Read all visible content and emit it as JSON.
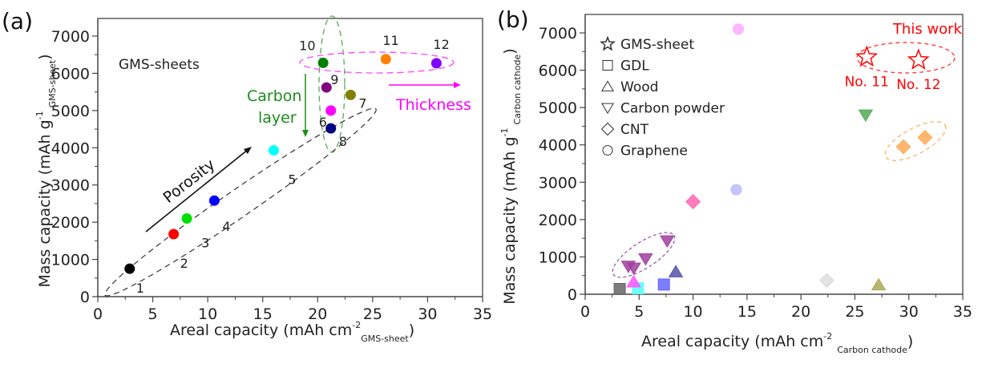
{
  "chart_data": [
    {
      "id": "a",
      "type": "scatter",
      "panel_label": "(a)",
      "title": "",
      "inset_title": "GMS-sheets",
      "xlabel": "Areal capacity (mAh cm",
      "xlabel_sup": "-2",
      "xlabel_sub": "GMS-sheet",
      "xlabel_close": ")",
      "ylabel": "Mass capacity (mAh g",
      "ylabel_sup": "-1",
      "ylabel_sub": "GMS-sheet",
      "ylabel_close": ")",
      "xlim": [
        0,
        35
      ],
      "ylim": [
        0,
        7000
      ],
      "xticks": [
        0,
        5,
        10,
        15,
        20,
        25,
        30,
        35
      ],
      "yticks": [
        0,
        1000,
        2000,
        3000,
        4000,
        5000,
        6000,
        7000
      ],
      "grid": false,
      "points": [
        {
          "label": "1",
          "x": 2.9,
          "y": 750,
          "color": "#000000"
        },
        {
          "label": "2",
          "x": 6.9,
          "y": 1680,
          "color": "#ff0000"
        },
        {
          "label": "3",
          "x": 8.1,
          "y": 2100,
          "color": "#00e000"
        },
        {
          "label": "4",
          "x": 10.6,
          "y": 2580,
          "color": "#0000ff"
        },
        {
          "label": "5",
          "x": 16.0,
          "y": 3930,
          "color": "#00ffff"
        },
        {
          "label": "6",
          "x": 21.2,
          "y": 5000,
          "color": "#ff00ff"
        },
        {
          "label": "7",
          "x": 23.0,
          "y": 5420,
          "color": "#808000"
        },
        {
          "label": "8",
          "x": 21.2,
          "y": 4520,
          "color": "#000080"
        },
        {
          "label": "9",
          "x": 20.8,
          "y": 5620,
          "color": "#800080"
        },
        {
          "label": "10",
          "x": 20.5,
          "y": 6280,
          "color": "#008000"
        },
        {
          "label": "11",
          "x": 26.2,
          "y": 6380,
          "color": "#ff8000"
        },
        {
          "label": "12",
          "x": 30.8,
          "y": 6270,
          "color": "#8000ff"
        }
      ],
      "annotations": {
        "porosity": {
          "text": "Porosity",
          "color": "#000000"
        },
        "carbon_layer": {
          "line1": "Carbon",
          "line2": "layer",
          "color": "#1a8c1a"
        },
        "thickness": {
          "text": "Thickness",
          "color": "#ff00ff"
        }
      }
    },
    {
      "id": "b",
      "type": "scatter",
      "panel_label": "(b)",
      "title": "",
      "xlabel": "Areal capacity (mAh cm",
      "xlabel_sup": "-2",
      "xlabel_sub": "Carbon cathode",
      "xlabel_close": ")",
      "ylabel": "Mass capacity (mAh g",
      "ylabel_sup": "-1",
      "ylabel_sub": "Carbon cathode",
      "ylabel_close": ")",
      "xlim": [
        0,
        35
      ],
      "ylim": [
        0,
        7000
      ],
      "xticks": [
        0,
        5,
        10,
        15,
        20,
        25,
        30,
        35
      ],
      "yticks": [
        0,
        1000,
        2000,
        3000,
        4000,
        5000,
        6000,
        7000
      ],
      "grid": false,
      "legend_position": "top-left",
      "legend": [
        {
          "marker": "star",
          "label": "GMS-sheet"
        },
        {
          "marker": "square",
          "label": "GDL"
        },
        {
          "marker": "triangle-up",
          "label": "Wood"
        },
        {
          "marker": "triangle-down",
          "label": "Carbon powder"
        },
        {
          "marker": "diamond",
          "label": "CNT"
        },
        {
          "marker": "circle",
          "label": "Graphene"
        }
      ],
      "this_work": {
        "title": "This work",
        "color": "#ff0000"
      },
      "series": [
        {
          "name": "GMS-sheet",
          "marker": "star",
          "points": [
            {
              "x": 26.1,
              "y": 6350,
              "color": "#ff0000",
              "label": "No. 11"
            },
            {
              "x": 30.9,
              "y": 6270,
              "color": "#ff0000",
              "label": "No. 12"
            }
          ]
        },
        {
          "name": "GDL",
          "marker": "square",
          "points": [
            {
              "x": 3.2,
              "y": 140,
              "color": "#666666"
            },
            {
              "x": 4.9,
              "y": 160,
              "color": "#55ffff"
            },
            {
              "x": 7.3,
              "y": 260,
              "color": "#6666ff"
            }
          ]
        },
        {
          "name": "Wood",
          "marker": "triangle-up",
          "points": [
            {
              "x": 4.5,
              "y": 330,
              "color": "#ff55ff"
            },
            {
              "x": 8.4,
              "y": 600,
              "color": "#5555aa"
            },
            {
              "x": 27.2,
              "y": 250,
              "color": "#aaaa55"
            }
          ]
        },
        {
          "name": "Carbon powder",
          "marker": "triangle-down",
          "points": [
            {
              "x": 4.0,
              "y": 750,
              "color": "#a040a0"
            },
            {
              "x": 4.5,
              "y": 700,
              "color": "#a040a0"
            },
            {
              "x": 5.6,
              "y": 950,
              "color": "#a040a0"
            },
            {
              "x": 7.6,
              "y": 1430,
              "color": "#a040a0"
            },
            {
              "x": 26.0,
              "y": 4800,
              "color": "#55aa55"
            }
          ]
        },
        {
          "name": "CNT",
          "marker": "diamond",
          "points": [
            {
              "x": 10.0,
              "y": 2480,
              "color": "#ff66b3"
            },
            {
              "x": 22.4,
              "y": 370,
              "color": "#dddddd"
            },
            {
              "x": 29.5,
              "y": 3950,
              "color": "#ffaa55"
            },
            {
              "x": 31.5,
              "y": 4200,
              "color": "#ffaa55"
            }
          ]
        },
        {
          "name": "Graphene",
          "marker": "circle",
          "points": [
            {
              "x": 14.2,
              "y": 7100,
              "color": "#ffaaff"
            },
            {
              "x": 14.0,
              "y": 2800,
              "color": "#bbbbff"
            }
          ]
        }
      ]
    }
  ]
}
